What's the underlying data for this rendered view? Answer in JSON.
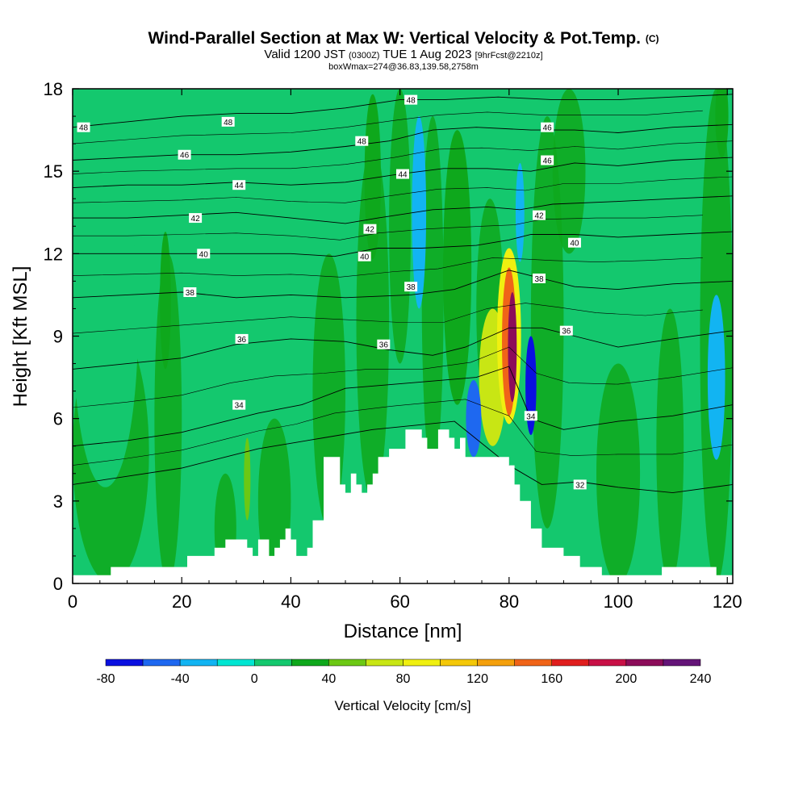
{
  "header": {
    "title": "Wind-Parallel Section at Max W: Vertical Velocity & Pot.Temp.",
    "title_mark": "(C)",
    "valid_a": "Valid 1200 JST",
    "valid_utc": "(0300Z)",
    "valid_b": "TUE 1 Aug 2023",
    "forecast": "[9hrFcst@2210z]",
    "box_info": "boxWmax=274@36.83,139.58,2758m"
  },
  "chart_data": {
    "type": "heatmap",
    "xlabel": "Distance [nm]",
    "ylabel": "Height [Kft MSL]",
    "xlim": [
      0,
      121
    ],
    "ylim": [
      0,
      18
    ],
    "x_ticks": [
      0,
      20,
      40,
      60,
      80,
      100,
      120
    ],
    "y_ticks": [
      0,
      3,
      6,
      9,
      12,
      15,
      18
    ],
    "colorbar": {
      "title": "Vertical Velocity [cm/s]",
      "levels": [
        -80,
        -60,
        -40,
        -20,
        0,
        20,
        40,
        60,
        80,
        100,
        120,
        140,
        160,
        180,
        200,
        220,
        240
      ],
      "colors": [
        "#0a10e0",
        "#1e68f0",
        "#12b4f2",
        "#00e6d2",
        "#14c86e",
        "#0ea81c",
        "#6cc814",
        "#c8e614",
        "#f0f010",
        "#f4c808",
        "#f4a00c",
        "#f06418",
        "#e01e1e",
        "#c81046",
        "#8c0c5a",
        "#641478"
      ],
      "tick_labels": [
        "-80",
        "-40",
        "0",
        "40",
        "80",
        "120",
        "160",
        "200",
        "240"
      ]
    },
    "terrain": [
      [
        0,
        0.3
      ],
      [
        5,
        0.3
      ],
      [
        7,
        0.6
      ],
      [
        12,
        0.6
      ],
      [
        16,
        0.6
      ],
      [
        20,
        0.6
      ],
      [
        21,
        1.0
      ],
      [
        25,
        1.0
      ],
      [
        26,
        1.3
      ],
      [
        28,
        1.6
      ],
      [
        31,
        1.6
      ],
      [
        32,
        1.3
      ],
      [
        33,
        1.0
      ],
      [
        34,
        1.6
      ],
      [
        36,
        1.0
      ],
      [
        37,
        1.3
      ],
      [
        38,
        1.6
      ],
      [
        39,
        2.0
      ],
      [
        40,
        1.6
      ],
      [
        41,
        1.0
      ],
      [
        42,
        1.0
      ],
      [
        43,
        1.3
      ],
      [
        44,
        2.3
      ],
      [
        46,
        4.6
      ],
      [
        48,
        4.6
      ],
      [
        49,
        3.6
      ],
      [
        50,
        3.3
      ],
      [
        51,
        4.0
      ],
      [
        52,
        3.6
      ],
      [
        53,
        3.3
      ],
      [
        54,
        3.6
      ],
      [
        55,
        4.0
      ],
      [
        56,
        4.6
      ],
      [
        58,
        4.9
      ],
      [
        61,
        5.6
      ],
      [
        64,
        5.3
      ],
      [
        65,
        4.9
      ],
      [
        67,
        5.6
      ],
      [
        69,
        5.3
      ],
      [
        70,
        4.9
      ],
      [
        71,
        5.3
      ],
      [
        72,
        4.6
      ],
      [
        79,
        4.6
      ],
      [
        80,
        4.3
      ],
      [
        81,
        3.6
      ],
      [
        82,
        3.0
      ],
      [
        84,
        2.0
      ],
      [
        86,
        1.3
      ],
      [
        90,
        1.0
      ],
      [
        93,
        0.6
      ],
      [
        97,
        0.3
      ],
      [
        100,
        0.3
      ],
      [
        105,
        0.3
      ],
      [
        108,
        0.6
      ],
      [
        117,
        0.6
      ],
      [
        118,
        0.3
      ],
      [
        121,
        0.3
      ]
    ],
    "contours": [
      {
        "label": "32",
        "points": [
          [
            0,
            3.6
          ],
          [
            10,
            3.9
          ],
          [
            20,
            4.2
          ],
          [
            28,
            4.6
          ],
          [
            34,
            4.9
          ],
          [
            40,
            5.1
          ],
          [
            46,
            5.3
          ],
          [
            55,
            5.6
          ],
          [
            70,
            5.9
          ],
          [
            80,
            4.3
          ],
          [
            86,
            3.6
          ],
          [
            93,
            3.7
          ],
          [
            100,
            3.5
          ],
          [
            110,
            3.3
          ],
          [
            121,
            3.6
          ]
        ]
      },
      {
        "label": "34",
        "points": [
          [
            0,
            5.0
          ],
          [
            10,
            5.2
          ],
          [
            20,
            5.5
          ],
          [
            28,
            5.9
          ],
          [
            34,
            6.2
          ],
          [
            42,
            6.5
          ],
          [
            50,
            7.1
          ],
          [
            62,
            7.3
          ],
          [
            74,
            7.5
          ],
          [
            80,
            7.9
          ],
          [
            84,
            6.0
          ],
          [
            90,
            5.6
          ],
          [
            100,
            5.9
          ],
          [
            110,
            6.1
          ],
          [
            121,
            6.5
          ]
        ]
      },
      {
        "label": "36",
        "points": [
          [
            0,
            7.8
          ],
          [
            10,
            8.0
          ],
          [
            20,
            8.2
          ],
          [
            30,
            8.7
          ],
          [
            40,
            8.9
          ],
          [
            50,
            8.8
          ],
          [
            58,
            8.5
          ],
          [
            66,
            8.3
          ],
          [
            72,
            8.6
          ],
          [
            80,
            9.3
          ],
          [
            86,
            9.3
          ],
          [
            92,
            9.0
          ],
          [
            100,
            8.6
          ],
          [
            110,
            8.9
          ],
          [
            121,
            9.2
          ]
        ]
      },
      {
        "label": "38",
        "points": [
          [
            0,
            10.4
          ],
          [
            10,
            10.5
          ],
          [
            20,
            10.6
          ],
          [
            30,
            10.4
          ],
          [
            40,
            10.5
          ],
          [
            50,
            10.4
          ],
          [
            62,
            10.5
          ],
          [
            70,
            10.7
          ],
          [
            80,
            11.4
          ],
          [
            86,
            11.1
          ],
          [
            92,
            10.8
          ],
          [
            100,
            10.7
          ],
          [
            110,
            10.9
          ],
          [
            121,
            11.0
          ]
        ]
      },
      {
        "label": "40",
        "points": [
          [
            0,
            12.0
          ],
          [
            10,
            12.0
          ],
          [
            20,
            12.0
          ],
          [
            30,
            12.0
          ],
          [
            40,
            12.0
          ],
          [
            48,
            11.9
          ],
          [
            56,
            12.2
          ],
          [
            64,
            12.2
          ],
          [
            74,
            12.3
          ],
          [
            80,
            12.5
          ],
          [
            84,
            12.7
          ],
          [
            92,
            12.7
          ],
          [
            100,
            12.6
          ],
          [
            110,
            12.7
          ],
          [
            121,
            12.8
          ]
        ]
      },
      {
        "label": "42",
        "points": [
          [
            0,
            13.3
          ],
          [
            10,
            13.3
          ],
          [
            20,
            13.4
          ],
          [
            30,
            13.5
          ],
          [
            40,
            13.3
          ],
          [
            50,
            13.1
          ],
          [
            56,
            13.3
          ],
          [
            66,
            13.6
          ],
          [
            76,
            13.7
          ],
          [
            82,
            13.6
          ],
          [
            88,
            13.8
          ],
          [
            100,
            13.9
          ],
          [
            110,
            14.0
          ],
          [
            121,
            14.1
          ]
        ]
      },
      {
        "label": "44",
        "points": [
          [
            0,
            14.4
          ],
          [
            10,
            14.5
          ],
          [
            20,
            14.5
          ],
          [
            30,
            14.6
          ],
          [
            40,
            14.5
          ],
          [
            50,
            14.6
          ],
          [
            60,
            14.9
          ],
          [
            68,
            15.1
          ],
          [
            76,
            15.1
          ],
          [
            84,
            15.0
          ],
          [
            92,
            15.3
          ],
          [
            100,
            15.2
          ],
          [
            110,
            15.4
          ],
          [
            121,
            15.5
          ]
        ]
      },
      {
        "label": "46",
        "points": [
          [
            0,
            15.4
          ],
          [
            10,
            15.5
          ],
          [
            20,
            15.6
          ],
          [
            30,
            15.6
          ],
          [
            40,
            15.7
          ],
          [
            50,
            15.9
          ],
          [
            58,
            16.1
          ],
          [
            66,
            16.5
          ],
          [
            74,
            16.6
          ],
          [
            84,
            16.5
          ],
          [
            92,
            16.5
          ],
          [
            100,
            16.4
          ],
          [
            110,
            16.6
          ],
          [
            121,
            16.7
          ]
        ]
      },
      {
        "label": "48",
        "points": [
          [
            0,
            16.6
          ],
          [
            10,
            16.8
          ],
          [
            20,
            17.0
          ],
          [
            30,
            17.1
          ],
          [
            40,
            17.1
          ],
          [
            50,
            17.3
          ],
          [
            60,
            17.6
          ],
          [
            68,
            17.6
          ],
          [
            78,
            17.7
          ],
          [
            88,
            17.6
          ],
          [
            100,
            17.6
          ],
          [
            110,
            17.7
          ],
          [
            121,
            17.8
          ]
        ]
      }
    ],
    "contour_labels": [
      {
        "text": "48",
        "x": 2,
        "y": 16.6
      },
      {
        "text": "48",
        "x": 28.5,
        "y": 16.8
      },
      {
        "text": "48",
        "x": 62,
        "y": 17.6
      },
      {
        "text": "48",
        "x": 53,
        "y": 16.1
      },
      {
        "text": "46",
        "x": 87,
        "y": 16.6
      },
      {
        "text": "46",
        "x": 20.5,
        "y": 15.6
      },
      {
        "text": "46",
        "x": 87,
        "y": 15.4
      },
      {
        "text": "44",
        "x": 30.5,
        "y": 14.5
      },
      {
        "text": "44",
        "x": 60.5,
        "y": 14.9
      },
      {
        "text": "42",
        "x": 22.5,
        "y": 13.3
      },
      {
        "text": "42",
        "x": 54.5,
        "y": 12.9
      },
      {
        "text": "42",
        "x": 85.5,
        "y": 13.4
      },
      {
        "text": "40",
        "x": 24,
        "y": 12.0
      },
      {
        "text": "40",
        "x": 53.5,
        "y": 11.9
      },
      {
        "text": "40",
        "x": 92,
        "y": 12.4
      },
      {
        "text": "38",
        "x": 21.5,
        "y": 10.6
      },
      {
        "text": "38",
        "x": 62,
        "y": 10.8
      },
      {
        "text": "38",
        "x": 85.5,
        "y": 11.1
      },
      {
        "text": "36",
        "x": 31,
        "y": 8.9
      },
      {
        "text": "36",
        "x": 57,
        "y": 8.7
      },
      {
        "text": "36",
        "x": 90.5,
        "y": 9.2
      },
      {
        "text": "34",
        "x": 30.5,
        "y": 6.5
      },
      {
        "text": "34",
        "x": 84,
        "y": 6.1
      },
      {
        "text": "32",
        "x": 93,
        "y": 3.6
      }
    ],
    "velocity_features": [
      {
        "x": 80,
        "y": 9.0,
        "rx": 2.2,
        "ry": 3.2,
        "w": 80
      },
      {
        "x": 80,
        "y": 8.8,
        "rx": 1.3,
        "ry": 2.7,
        "w": 140
      },
      {
        "x": 80.6,
        "y": 8.6,
        "rx": 0.8,
        "ry": 2.0,
        "w": 200
      },
      {
        "x": 77,
        "y": 7.5,
        "rx": 2.5,
        "ry": 2.5,
        "w": 60
      },
      {
        "x": 84,
        "y": 7.2,
        "rx": 1.0,
        "ry": 1.8,
        "w": -70
      },
      {
        "x": 73.5,
        "y": 6.0,
        "rx": 1.4,
        "ry": 1.4,
        "w": -60
      },
      {
        "x": 82,
        "y": 13.5,
        "rx": 0.8,
        "ry": 1.8,
        "w": -40
      },
      {
        "x": 63.5,
        "y": 13.5,
        "rx": 1.3,
        "ry": 3.5,
        "w": -30
      },
      {
        "x": 70.5,
        "y": 11.5,
        "rx": 2.6,
        "ry": 5.0,
        "w": 30
      },
      {
        "x": 55,
        "y": 14.8,
        "rx": 1.5,
        "ry": 3.0,
        "w": 30
      },
      {
        "x": 17,
        "y": 10.3,
        "rx": 1.0,
        "ry": 2.5,
        "w": 30
      },
      {
        "x": 32,
        "y": 3.8,
        "rx": 0.6,
        "ry": 1.5,
        "w": 40
      },
      {
        "x": 118,
        "y": 7.5,
        "rx": 1.6,
        "ry": 3.0,
        "w": -30
      },
      {
        "x": 6,
        "y": 9.5,
        "rx": 6.0,
        "ry": 6.0,
        "w": 10
      },
      {
        "x": 119,
        "y": 17,
        "rx": 1.2,
        "ry": 1.5,
        "w": 20
      }
    ]
  }
}
